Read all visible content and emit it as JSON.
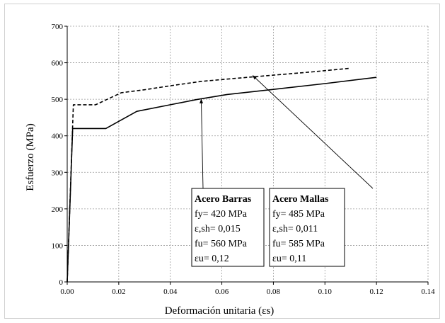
{
  "chart_data": {
    "type": "line",
    "title": "",
    "xlabel": "Deformación unitaria (εs)",
    "ylabel": "Esfuerzo (MPa)",
    "xlim": [
      0,
      0.14
    ],
    "ylim": [
      0,
      700
    ],
    "x_ticks": [
      "0.00",
      "0.02",
      "0.04",
      "0.06",
      "0.08",
      "0.10",
      "0.12",
      "0.14"
    ],
    "y_ticks": [
      "0",
      "100",
      "200",
      "300",
      "400",
      "500",
      "600",
      "700"
    ],
    "grid": true,
    "series": [
      {
        "name": "Acero Barras",
        "style": "solid",
        "color": "#000000",
        "x": [
          0,
          0.0021,
          0.015,
          0.027,
          0.04,
          0.05,
          0.062,
          0.08,
          0.1,
          0.12
        ],
        "y": [
          0,
          420,
          420,
          467,
          485,
          499,
          513,
          527,
          543,
          560
        ]
      },
      {
        "name": "Acero Mallas",
        "style": "dashed",
        "color": "#000000",
        "x": [
          0,
          0.0024,
          0.011,
          0.021,
          0.03,
          0.04,
          0.052,
          0.065,
          0.08,
          0.095,
          0.11
        ],
        "y": [
          0,
          485,
          485,
          518,
          526,
          537,
          549,
          557,
          566,
          575,
          585
        ]
      }
    ],
    "annotations": [
      {
        "title": "Acero Barras",
        "lines": [
          "fy= 420 MPa",
          "ε,sh= 0,015",
          "fu= 560 MPa",
          "εu= 0,12"
        ],
        "arrow_to": [
          0.052,
          500
        ]
      },
      {
        "title": "Acero Mallas",
        "lines": [
          "fy= 485 MPa",
          "ε,sh= 0,011",
          "fu= 585 MPa",
          "εu= 0,11"
        ],
        "arrow_to": [
          0.072,
          565
        ]
      }
    ]
  }
}
